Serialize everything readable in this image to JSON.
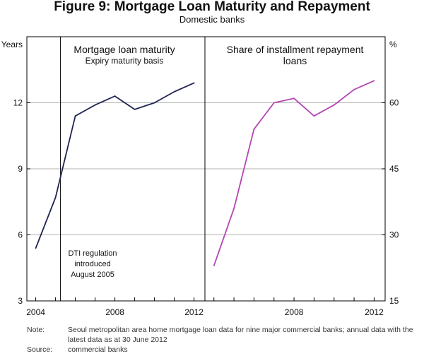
{
  "header": {
    "title": "Figure 9: Mortgage Loan Maturity and Repayment",
    "subtitle": "Domestic banks"
  },
  "colors": {
    "left_series": "#1f2452",
    "right_series": "#b347b3",
    "grid": "#b3b3b3",
    "axis": "#000000"
  },
  "chart_data": [
    {
      "type": "line",
      "title": "Mortgage loan maturity",
      "subtitle": "Expiry maturity basis",
      "ylabel": "Years",
      "ylim": [
        3,
        15
      ],
      "yticks": [
        3,
        6,
        9,
        12
      ],
      "xlim": [
        2003.55,
        2012.55
      ],
      "xticks": [
        2004,
        2008,
        2012
      ],
      "series": [
        {
          "name": "Mortgage loan maturity",
          "x": [
            2004,
            2005,
            2006,
            2007,
            2008,
            2009,
            2010,
            2011,
            2012
          ],
          "values": [
            5.4,
            7.7,
            11.4,
            11.9,
            12.3,
            11.7,
            12.0,
            12.5,
            12.9
          ]
        }
      ],
      "annotation": {
        "at_x": 2005.25,
        "lines": [
          "DTI regulation",
          "introduced",
          "August 2005"
        ]
      }
    },
    {
      "type": "line",
      "title": "Share of installment repayment",
      "title2": "loans",
      "ylabel": "%",
      "ylim": [
        15,
        75
      ],
      "yticks": [
        15,
        30,
        45,
        60
      ],
      "xlim": [
        2003.55,
        2012.55
      ],
      "xticks": [
        2008,
        2012
      ],
      "series": [
        {
          "name": "Share of installment repayment loans",
          "x": [
            2004,
            2005,
            2006,
            2007,
            2008,
            2009,
            2010,
            2011,
            2012
          ],
          "values": [
            23,
            36,
            54,
            60,
            61,
            57,
            59.5,
            63,
            65
          ]
        }
      ]
    }
  ],
  "notes": {
    "note_label": "Note:",
    "note_text": "Seoul metropolitan area home mortgage loan data for nine major commercial banks; annual data with the latest data as at 30 June 2012",
    "source_label": "Source:",
    "source_text": "commercial banks"
  }
}
